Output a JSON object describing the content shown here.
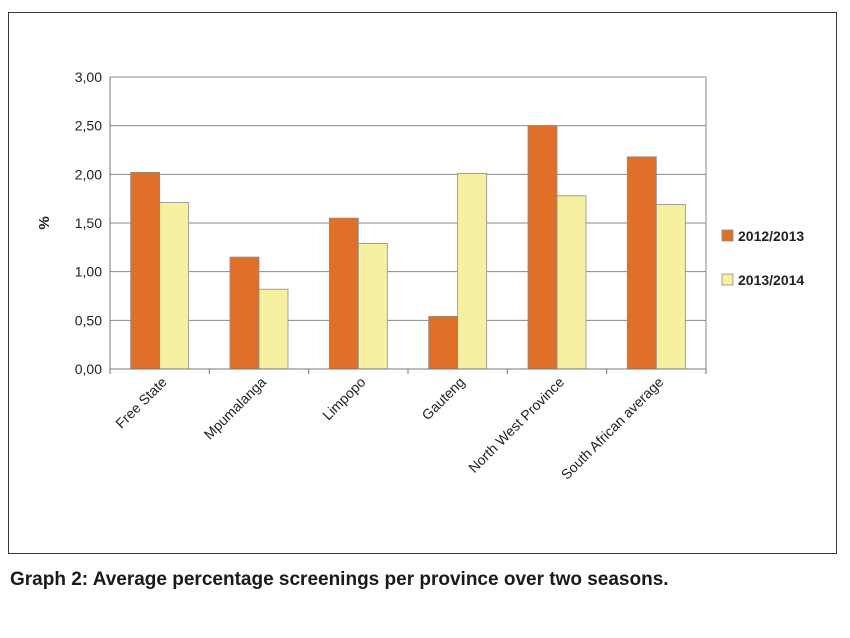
{
  "caption": "Graph 2: Average percentage screenings per province over two seasons.",
  "chart_data": {
    "type": "bar",
    "title": "",
    "xlabel": "",
    "ylabel": "%",
    "ylim": [
      0,
      3
    ],
    "yticks": [
      "0,00",
      "0,50",
      "1,00",
      "1,50",
      "2,00",
      "2,50",
      "3,00"
    ],
    "grid": true,
    "legend_position": "right",
    "categories": [
      "Free State",
      "Mpumalanga",
      "Limpopo",
      "Gauteng",
      "North West Province",
      "South African average"
    ],
    "series": [
      {
        "name": "2012/2013",
        "color": "#e07027",
        "values": [
          2.02,
          1.15,
          1.55,
          0.54,
          2.5,
          2.18
        ]
      },
      {
        "name": "2013/2014",
        "color": "#f6f1a1",
        "values": [
          1.71,
          0.82,
          1.29,
          2.01,
          1.78,
          1.69
        ]
      }
    ]
  }
}
